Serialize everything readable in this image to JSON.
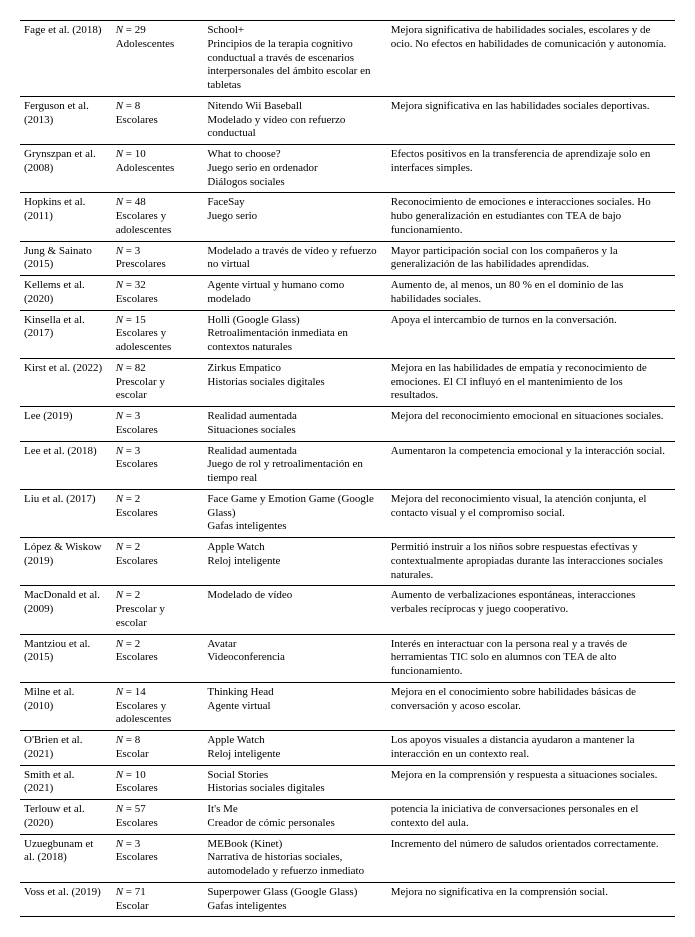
{
  "table": {
    "columns": [
      "study",
      "sample",
      "intervention",
      "results"
    ],
    "col_widths_pct": [
      14,
      14,
      28,
      44
    ],
    "font_family": "Times New Roman",
    "font_size_pt": 8,
    "border_color": "#000000",
    "background_color": "#ffffff",
    "rows": [
      {
        "study": "Fage et al. (2018)",
        "sample_n": "N = 29",
        "sample_desc": "Adolescentes",
        "intervention": "School+\nPrincipios de la terapia cognitivo conductual a través de escenarios interpersonales del ámbito escolar en tabletas",
        "results": "Mejora significativa de habilidades sociales, escolares y de ocio. No efectos en habilidades de comunicación y autonomía."
      },
      {
        "study": "Ferguson et al. (2013)",
        "sample_n": "N = 8",
        "sample_desc": "Escolares",
        "intervention": "Nitendo Wii Baseball\nModelado y vídeo con refuerzo conductual",
        "results": "Mejora significativa en las habilidades sociales deportivas."
      },
      {
        "study": "Grynszpan et al. (2008)",
        "sample_n": "N = 10",
        "sample_desc": "Adolescentes",
        "intervention": "What to choose?\nJuego serio en ordenador\nDiálogos sociales",
        "results": "Efectos positivos en la transferencia de aprendizaje solo en interfaces simples."
      },
      {
        "study": "Hopkins et al. (2011)",
        "sample_n": "N = 48",
        "sample_desc": "Escolares y adolescentes",
        "intervention": "FaceSay\nJuego serio",
        "results": "Reconocimiento de emociones e interacciones sociales. Ho hubo generalización en estudiantes con TEA de bajo funcionamiento."
      },
      {
        "study": "Jung & Sainato (2015)",
        "sample_n": "N = 3",
        "sample_desc": "Prescolares",
        "intervention": "Modelado a través de vídeo y refuerzo no virtual",
        "results": "Mayor participación social con los compañeros y la generalización de las habilidades aprendidas."
      },
      {
        "study": "Kellems et al. (2020)",
        "sample_n": "N = 32",
        "sample_desc": "Escolares",
        "intervention": "Agente virtual y humano como modelado",
        "results": "Aumento de, al menos, un 80 % en el dominio de las habilidades sociales."
      },
      {
        "study": "Kinsella et al. (2017)",
        "sample_n": "N = 15",
        "sample_desc": "Escolares y adolescentes",
        "intervention": "Holli (Google Glass)\nRetroalimentación inmediata en contextos naturales",
        "results": "Apoya el intercambio de turnos en la conversación."
      },
      {
        "study": "Kirst et al. (2022)",
        "sample_n": "N = 82",
        "sample_desc": "Prescolar y escolar",
        "intervention": "Zirkus Empatico\nHistorias sociales digitales",
        "results": "Mejora en las habilidades de empatía y reconocimiento de emociones. El CI influyó en el mantenimiento de los resultados."
      },
      {
        "study": "Lee (2019)",
        "sample_n": "N = 3",
        "sample_desc": "Escolares",
        "intervention": "Realidad aumentada\nSituaciones sociales",
        "results": "Mejora del reconocimiento emocional en situaciones sociales."
      },
      {
        "study": "Lee et al. (2018)",
        "sample_n": "N = 3",
        "sample_desc": "Escolares",
        "intervention": "Realidad aumentada\nJuego de rol y retroalimentación en tiempo real",
        "results": "Aumentaron la competencia emocional y la interacción social."
      },
      {
        "study": "Liu et al. (2017)",
        "sample_n": "N = 2",
        "sample_desc": "Escolares",
        "intervention": "Face Game y Emotion Game (Google Glass)\nGafas inteligentes",
        "results": "Mejora del reconocimiento visual, la atención conjunta, el contacto visual y el compromiso social."
      },
      {
        "study": "López & Wiskow (2019)",
        "sample_n": "N = 2",
        "sample_desc": "Escolares",
        "intervention": "Apple Watch\nReloj inteligente",
        "results": "Permitió instruir a los niños sobre respuestas efectivas y contextualmente apropiadas durante las interacciones sociales naturales."
      },
      {
        "study": "MacDonald et al. (2009)",
        "sample_n": "N = 2",
        "sample_desc": "Prescolar y escolar",
        "intervention": "Modelado de vídeo",
        "results": "Aumento de verbalizaciones espontáneas, interacciones verbales recíprocas y juego cooperativo."
      },
      {
        "study": "Mantziou et al. (2015)",
        "sample_n": "N = 2",
        "sample_desc": "Escolares",
        "intervention": "Avatar\nVideoconferencia",
        "results": "Interés en interactuar con la persona real y a través de herramientas TIC solo en alumnos con TEA de alto funcionamiento."
      },
      {
        "study": "Milne et al. (2010)",
        "sample_n": "N = 14",
        "sample_desc": "Escolares y adolescentes",
        "intervention": "Thinking Head\nAgente virtual",
        "results": "Mejora en el conocimiento sobre habilidades básicas de conversación y acoso escolar."
      },
      {
        "study": "O'Brien et al. (2021)",
        "sample_n": "N = 8",
        "sample_desc": "Escolar",
        "intervention": "Apple Watch\nReloj inteligente",
        "results": "Los apoyos visuales a distancia ayudaron a mantener la interacción en un contexto real."
      },
      {
        "study": "Smith et al. (2021)",
        "sample_n": "N = 10",
        "sample_desc": "Escolares",
        "intervention": "Social Stories\nHistorias sociales digitales",
        "results": "Mejora en la comprensión y respuesta a situaciones sociales."
      },
      {
        "study": "Terlouw et al. (2020)",
        "sample_n": "N = 57",
        "sample_desc": "Escolares",
        "intervention": "It's Me\nCreador de cómic personales",
        "results": "potencia la iniciativa de conversaciones personales en el contexto del aula."
      },
      {
        "study": "Uzuegbunam et al. (2018)",
        "sample_n": "N = 3",
        "sample_desc": "Escolares",
        "intervention": "MEBook (Kinet)\nNarrativa de historias sociales, automodelado y refuerzo inmediato",
        "results": "Incremento del número de saludos orientados correctamente."
      },
      {
        "study": "Voss et al. (2019)",
        "sample_n": "N = 71",
        "sample_desc": "Escolar",
        "intervention": "Superpower Glass (Google Glass)\nGafas inteligentes",
        "results": "Mejora no significativa en la comprensión social."
      }
    ]
  }
}
